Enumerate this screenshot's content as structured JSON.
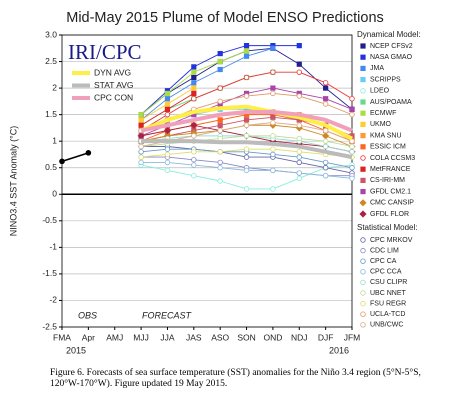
{
  "chart_data": {
    "type": "line",
    "title": "Mid-May 2015 Plume of Model ENSO Predictions",
    "logo": "IRI/CPC",
    "y_label": "NINO3.4 SST Anomaly (°C)",
    "annotations": [
      "OBS",
      "FORECAST"
    ],
    "year_labels": [
      "2015",
      "2016"
    ],
    "legend_headings": {
      "dynamical": "Dynamical Model:",
      "statistical": "Statistical Model:"
    },
    "categories": [
      "FMA",
      "Apr",
      "AMJ",
      "MJJ",
      "JJA",
      "JAS",
      "ASO",
      "SON",
      "OND",
      "NDJ",
      "DJF",
      "JFM"
    ],
    "ylim": [
      -2.5,
      3.0
    ],
    "yticks": [
      {
        "value": 3.0,
        "label": "3.0"
      },
      2.5,
      2,
      1.5,
      1,
      0.5,
      0,
      -0.5,
      -1,
      -1.5,
      -2,
      -2.5
    ],
    "grid": true,
    "observed": {
      "color": "#000000",
      "values": [
        0.62,
        0.78,
        null,
        null,
        null,
        null,
        null,
        null,
        null,
        null,
        null,
        null
      ]
    },
    "series": [
      {
        "name": "DYN AVG",
        "group": "average",
        "color": "#ffee44",
        "values": [
          null,
          null,
          null,
          1.2,
          1.4,
          1.55,
          1.62,
          1.65,
          1.55,
          1.45,
          1.3,
          1.05
        ]
      },
      {
        "name": "STAT AVG",
        "group": "average",
        "color": "#bbbbbb",
        "values": [
          null,
          null,
          null,
          1.0,
          1.0,
          1.0,
          0.98,
          0.98,
          0.95,
          0.9,
          0.8,
          0.7
        ]
      },
      {
        "name": "CPC CON",
        "group": "average",
        "color": "#f0a0b8",
        "values": [
          null,
          null,
          null,
          1.2,
          1.3,
          1.4,
          1.5,
          1.55,
          1.55,
          1.5,
          1.4,
          1.2
        ]
      },
      {
        "name": "NCEP CFSv2",
        "group": "dynamical",
        "marker": "square",
        "color": "#1f1f8f",
        "values": [
          null,
          null,
          null,
          1.5,
          1.9,
          2.2,
          2.5,
          2.7,
          2.75,
          2.45,
          2.0,
          1.6
        ]
      },
      {
        "name": "NASA GMAO",
        "group": "dynamical",
        "marker": "square",
        "color": "#2233dd",
        "values": [
          null,
          null,
          null,
          1.5,
          1.95,
          2.4,
          2.65,
          2.8,
          2.8,
          2.8,
          null,
          null
        ]
      },
      {
        "name": "JMA",
        "group": "dynamical",
        "marker": "square",
        "color": "#4488ee",
        "values": [
          null,
          null,
          null,
          1.4,
          1.8,
          2.1,
          2.35,
          2.6,
          2.75,
          null,
          null,
          null
        ]
      },
      {
        "name": "SCRIPPS",
        "group": "dynamical",
        "marker": "square",
        "color": "#66ccff",
        "values": [
          null,
          null,
          null,
          1.2,
          1.4,
          1.5,
          1.6,
          1.6,
          1.55,
          1.4,
          1.3,
          1.0
        ]
      },
      {
        "name": "LDEO",
        "group": "dynamical",
        "marker": "circle",
        "color": "#88eedd",
        "values": [
          null,
          null,
          null,
          0.55,
          0.45,
          0.35,
          0.25,
          0.1,
          0.1,
          0.3,
          0.5,
          0.55
        ]
      },
      {
        "name": "AUS/POAMA",
        "group": "dynamical",
        "marker": "square",
        "color": "#66dd88",
        "values": [
          null,
          null,
          null,
          1.3,
          1.6,
          1.8,
          2.0,
          2.2,
          2.3,
          null,
          null,
          null
        ]
      },
      {
        "name": "ECMWF",
        "group": "dynamical",
        "marker": "square",
        "color": "#aadd44",
        "values": [
          null,
          null,
          null,
          1.5,
          1.9,
          2.3,
          2.5,
          2.7,
          null,
          null,
          null,
          null
        ]
      },
      {
        "name": "UKMO",
        "group": "dynamical",
        "marker": "square",
        "color": "#ffcc33",
        "values": [
          null,
          null,
          null,
          1.4,
          1.7,
          2.0,
          null,
          null,
          null,
          null,
          null,
          null
        ]
      },
      {
        "name": "KMA SNU",
        "group": "dynamical",
        "marker": "square",
        "color": "#ff9933",
        "values": [
          null,
          null,
          null,
          1.1,
          1.2,
          1.3,
          1.4,
          1.5,
          1.55,
          1.5,
          1.3,
          1.0
        ]
      },
      {
        "name": "ESSIC ICM",
        "group": "dynamical",
        "marker": "square",
        "color": "#ff6622",
        "values": [
          null,
          null,
          null,
          1.0,
          1.2,
          1.3,
          1.4,
          1.5,
          1.5,
          1.4,
          1.2,
          1.0
        ]
      },
      {
        "name": "COLA CCSM3",
        "group": "dynamical",
        "marker": "circle",
        "color": "#ee3333",
        "values": [
          null,
          null,
          null,
          1.2,
          1.5,
          1.8,
          2.0,
          2.2,
          2.3,
          2.3,
          2.1,
          1.8
        ]
      },
      {
        "name": "MetFRANCE",
        "group": "dynamical",
        "marker": "square",
        "color": "#dd2222",
        "values": [
          null,
          null,
          null,
          1.3,
          1.6,
          1.9,
          null,
          null,
          null,
          null,
          null,
          null
        ]
      },
      {
        "name": "CS-IRI-MM",
        "group": "dynamical",
        "marker": "square",
        "color": "#cc5566",
        "values": [
          null,
          null,
          null,
          1.0,
          1.1,
          1.2,
          1.3,
          1.4,
          1.45,
          1.4,
          1.3,
          1.1
        ]
      },
      {
        "name": "GFDL CM2.1",
        "group": "dynamical",
        "marker": "square",
        "color": "#aa44aa",
        "values": [
          null,
          null,
          null,
          1.1,
          1.3,
          1.5,
          1.7,
          1.9,
          2.0,
          1.9,
          1.8,
          1.6
        ]
      },
      {
        "name": "CMC CANSIP",
        "group": "dynamical",
        "marker": "diamond",
        "color": "#cc8822",
        "values": [
          null,
          null,
          null,
          1.0,
          1.1,
          1.15,
          1.2,
          1.3,
          1.3,
          1.25,
          1.1,
          0.9
        ]
      },
      {
        "name": "GFDL FLOR",
        "group": "dynamical",
        "marker": "diamond",
        "color": "#aa2244",
        "values": [
          null,
          null,
          null,
          1.1,
          1.2,
          1.3,
          1.2,
          1.1,
          1.0,
          0.95,
          0.9,
          0.8
        ]
      },
      {
        "name": "CPC MRKOV",
        "group": "statistical",
        "marker": "circle",
        "color": "#6666aa",
        "values": [
          null,
          null,
          null,
          0.9,
          0.9,
          0.85,
          0.8,
          0.7,
          0.7,
          0.6,
          0.5,
          0.4
        ]
      },
      {
        "name": "CDC LIM",
        "group": "statistical",
        "marker": "circle",
        "color": "#8888cc",
        "values": [
          null,
          null,
          null,
          0.7,
          0.7,
          0.65,
          0.6,
          0.5,
          0.45,
          0.4,
          0.35,
          0.35
        ]
      },
      {
        "name": "CPC CA",
        "group": "statistical",
        "marker": "circle",
        "color": "#6699cc",
        "values": [
          null,
          null,
          null,
          0.8,
          0.85,
          0.85,
          0.8,
          0.8,
          0.75,
          0.7,
          0.6,
          0.5
        ]
      },
      {
        "name": "CPC CCA",
        "group": "statistical",
        "marker": "circle",
        "color": "#88bbdd",
        "values": [
          null,
          null,
          null,
          0.6,
          0.6,
          0.55,
          0.5,
          0.45,
          0.45,
          0.4,
          0.35,
          0.3
        ]
      },
      {
        "name": "CSU CLIPR",
        "group": "statistical",
        "marker": "circle",
        "color": "#99ddcc",
        "values": [
          null,
          null,
          null,
          1.0,
          1.05,
          1.1,
          1.1,
          1.1,
          1.05,
          1.0,
          0.9,
          0.8
        ]
      },
      {
        "name": "UBC NNET",
        "group": "statistical",
        "marker": "circle",
        "color": "#bbdd99",
        "values": [
          null,
          null,
          null,
          0.9,
          0.95,
          1.0,
          1.05,
          1.1,
          1.1,
          1.05,
          1.0,
          0.9
        ]
      },
      {
        "name": "FSU REGR",
        "group": "statistical",
        "marker": "circle",
        "color": "#dddd66",
        "values": [
          null,
          null,
          null,
          0.7,
          0.75,
          0.8,
          0.8,
          0.85,
          0.85,
          0.8,
          0.75,
          0.7
        ]
      },
      {
        "name": "UCLA-TCD",
        "group": "statistical",
        "marker": "circle",
        "color": "#dd9966",
        "values": [
          null,
          null,
          null,
          1.2,
          1.4,
          1.6,
          1.75,
          1.85,
          1.9,
          1.85,
          1.7,
          1.5
        ]
      },
      {
        "name": "UNB/CWC",
        "group": "statistical",
        "marker": "circle",
        "color": "#ddaa88",
        "values": [
          null,
          null,
          null,
          0.9,
          1.0,
          1.1,
          1.2,
          1.3,
          1.35,
          1.3,
          1.2,
          1.0
        ]
      }
    ]
  },
  "caption": "Figure 6. Forecasts of sea surface temperature (SST) anomalies for the Niño 3.4 region (5°N-5°S, 120°W-170°W). Figure updated 19 May 2015."
}
